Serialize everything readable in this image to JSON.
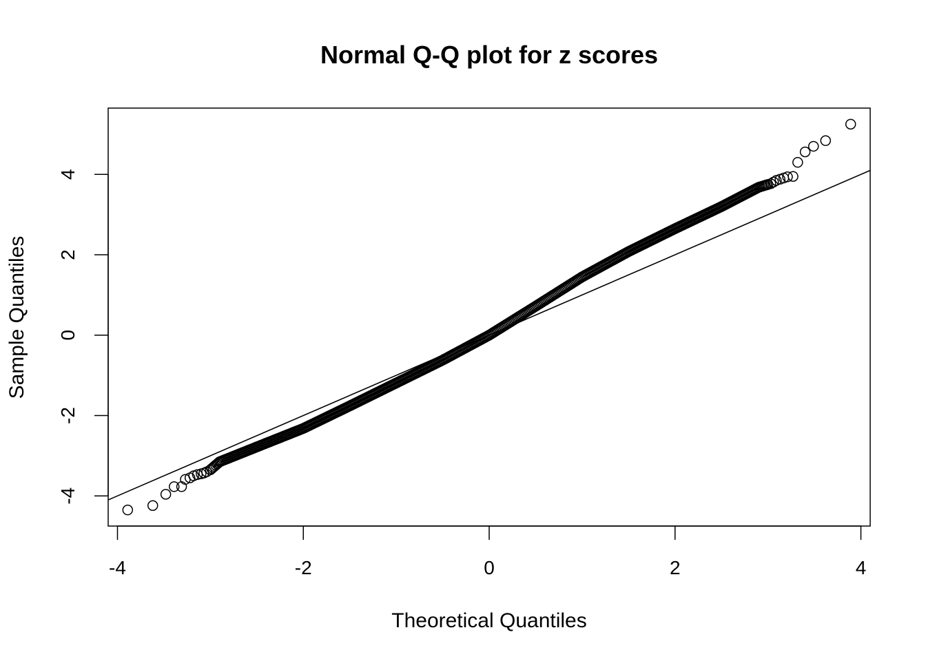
{
  "chart_data": {
    "type": "scatter",
    "title": "Normal Q-Q plot for z scores",
    "xlabel": "Theoretical Quantiles",
    "ylabel": "Sample Quantiles",
    "xlim": [
      -4.1,
      4.1
    ],
    "ylim": [
      -4.75,
      5.65
    ],
    "xticks": [
      -4,
      -2,
      0,
      2,
      4
    ],
    "yticks": [
      -4,
      -2,
      0,
      2,
      4
    ],
    "xtick_labels": [
      "-4",
      "-2",
      "0",
      "2",
      "4"
    ],
    "ytick_labels": [
      "-4",
      "-2",
      "0",
      "2",
      "4"
    ],
    "grid": false,
    "reference_line": {
      "intercept": 0,
      "slope": 1.0
    },
    "curve_knots": {
      "x": [
        -3.0,
        -2.9,
        -2.5,
        -2.0,
        -1.5,
        -1.0,
        -0.5,
        0.0,
        0.5,
        1.0,
        1.5,
        2.0,
        2.5,
        2.9,
        3.0
      ],
      "y": [
        -3.35,
        -3.15,
        -2.78,
        -2.32,
        -1.76,
        -1.19,
        -0.62,
        0.0,
        0.72,
        1.45,
        2.08,
        2.65,
        3.2,
        3.68,
        3.75
      ]
    },
    "tail_points": [
      {
        "x": -3.89,
        "y": -4.35
      },
      {
        "x": -3.62,
        "y": -4.24
      },
      {
        "x": -3.48,
        "y": -3.96
      },
      {
        "x": -3.39,
        "y": -3.77
      },
      {
        "x": -3.31,
        "y": -3.77
      },
      {
        "x": -3.27,
        "y": -3.59
      },
      {
        "x": -3.22,
        "y": -3.55
      },
      {
        "x": -3.18,
        "y": -3.5
      },
      {
        "x": -3.14,
        "y": -3.47
      },
      {
        "x": -3.1,
        "y": -3.45
      },
      {
        "x": -3.07,
        "y": -3.43
      },
      {
        "x": -3.04,
        "y": -3.4
      },
      {
        "x": 3.03,
        "y": 3.77
      },
      {
        "x": 3.06,
        "y": 3.81
      },
      {
        "x": 3.09,
        "y": 3.85
      },
      {
        "x": 3.13,
        "y": 3.88
      },
      {
        "x": 3.17,
        "y": 3.91
      },
      {
        "x": 3.21,
        "y": 3.94
      },
      {
        "x": 3.27,
        "y": 3.95
      },
      {
        "x": 3.32,
        "y": 4.3
      },
      {
        "x": 3.4,
        "y": 4.56
      },
      {
        "x": 3.49,
        "y": 4.7
      },
      {
        "x": 3.62,
        "y": 4.84
      },
      {
        "x": 3.89,
        "y": 5.25
      }
    ]
  }
}
